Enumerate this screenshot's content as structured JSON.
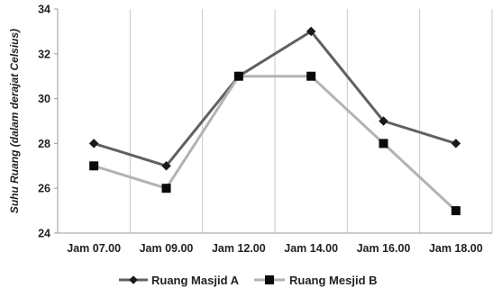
{
  "chart_data": {
    "type": "line",
    "ylabel": "Suhu Ruang (dalam derajat Celsius)",
    "xlabel": "",
    "categories": [
      "Jam 07.00",
      "Jam 09.00",
      "Jam 12.00",
      "Jam 14.00",
      "Jam 16.00",
      "Jam 18.00"
    ],
    "ylim": [
      24,
      34
    ],
    "yticks": [
      24,
      26,
      28,
      30,
      32,
      34
    ],
    "grid": "vertical",
    "legend_position": "bottom",
    "series": [
      {
        "name": "Ruang Masjid A",
        "values": [
          28,
          27,
          31,
          33,
          29,
          28
        ],
        "color": "#606060",
        "marker": "diamond"
      },
      {
        "name": "Ruang Mesjid B",
        "values": [
          27,
          26,
          31,
          31,
          28,
          25
        ],
        "color": "#b3b3b3",
        "marker": "square"
      }
    ]
  }
}
